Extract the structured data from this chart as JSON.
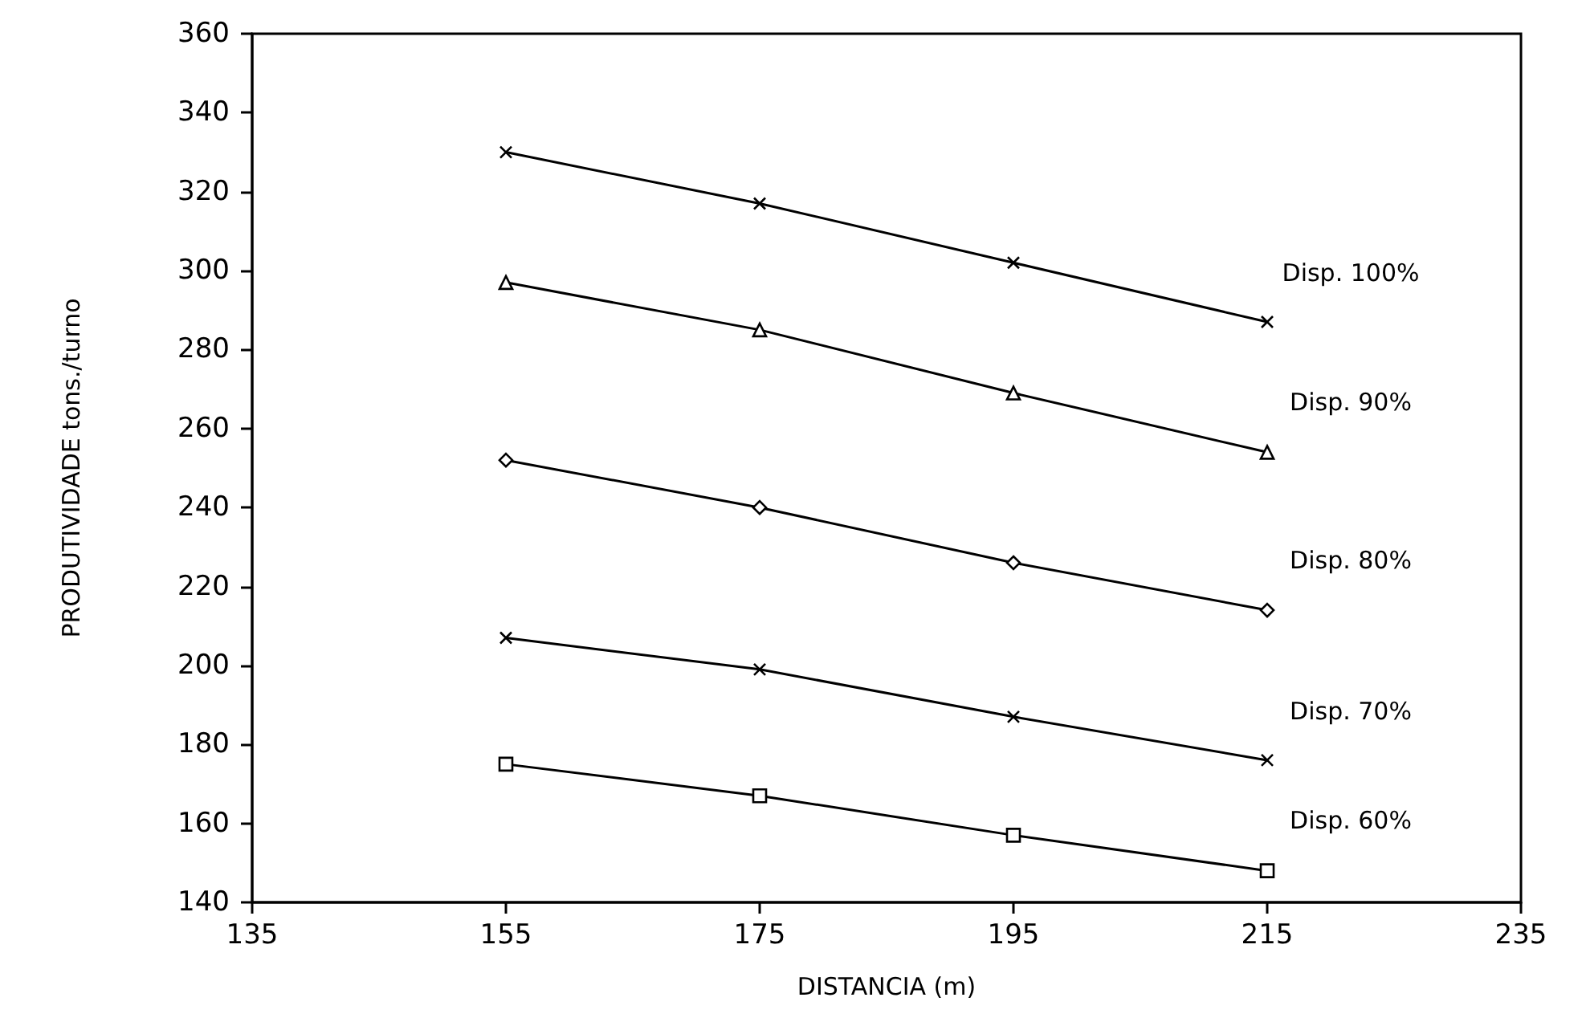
{
  "chart_data": {
    "type": "line",
    "xlabel": "DISTANCIA (m)",
    "ylabel": "PRODUTIVIDADE tons./turno",
    "x": [
      155,
      175,
      195,
      215
    ],
    "xlim": [
      135,
      235
    ],
    "xticks": [
      135,
      155,
      175,
      195,
      215,
      235
    ],
    "ylim": [
      140,
      360
    ],
    "yticks": [
      140,
      160,
      180,
      200,
      220,
      240,
      260,
      280,
      300,
      320,
      340,
      360
    ],
    "grid": false,
    "legend": false,
    "line_style": "solid",
    "series": [
      {
        "name": "Disp. 100%",
        "color": "#000000",
        "marker": "cross",
        "values": [
          330,
          317,
          302,
          287
        ]
      },
      {
        "name": "Disp. 90%",
        "color": "#000000",
        "marker": "triangle",
        "values": [
          297,
          285,
          269,
          254
        ]
      },
      {
        "name": "Disp. 80%",
        "color": "#000000",
        "marker": "diamond",
        "values": [
          252,
          240,
          226,
          214
        ]
      },
      {
        "name": "Disp. 70%",
        "color": "#000000",
        "marker": "cross",
        "values": [
          207,
          199,
          187,
          176
        ]
      },
      {
        "name": "Disp. 60%",
        "color": "#000000",
        "marker": "square",
        "values": [
          175,
          167,
          157,
          148
        ]
      }
    ]
  }
}
